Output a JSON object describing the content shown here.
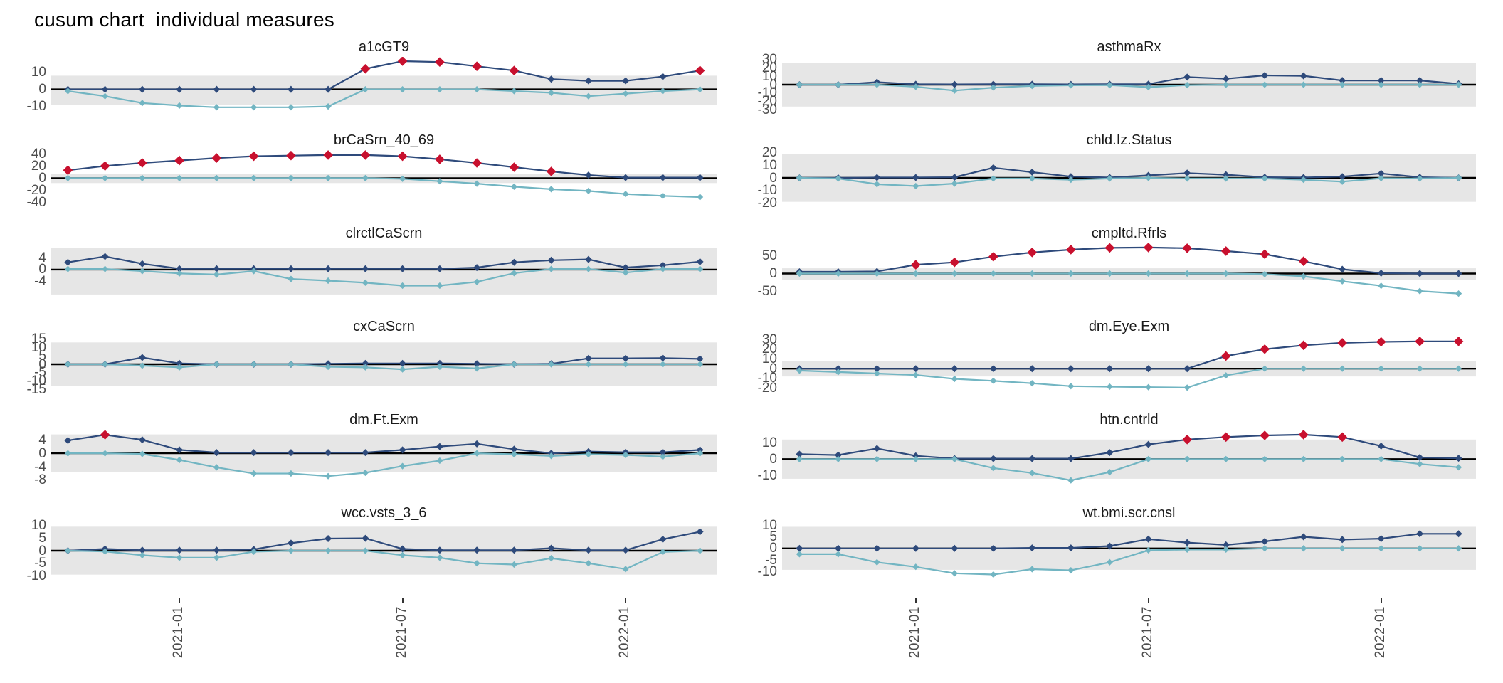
{
  "title": "cusum chart  individual measures",
  "colors": {
    "upper_series": "#2E4A7B",
    "lower_series": "#72B5C2",
    "flag": "#C8102E",
    "band": "#E6E6E6",
    "center_line": "#000000",
    "axis_text": "#4D4D4D",
    "facet_title_text": "#1A1A1A"
  },
  "chart_data": {
    "type": "line",
    "title": "cusum chart  individual measures",
    "grid": "off",
    "legend": "none",
    "n_points": 18,
    "x_axis": {
      "tick_labels": [
        "2021-01",
        "2021-07",
        "2022-01"
      ],
      "tick_point_index": [
        4,
        10,
        16
      ],
      "label_rotation_deg": -90
    },
    "marker": "diamond",
    "center_line_y": 0,
    "panels": [
      {
        "title": "a1cGT9",
        "yticks": [
          10,
          0,
          -10
        ],
        "ylim": [
          -13.5,
          19
        ],
        "band": [
          -9,
          8
        ],
        "upper": [
          0,
          0,
          0,
          0,
          0,
          0,
          0,
          0,
          12,
          16.5,
          16,
          13.5,
          11,
          6,
          5,
          5,
          7.5,
          11
        ],
        "lower": [
          -1,
          -4,
          -8,
          -9.5,
          -10.5,
          -10.5,
          -10.5,
          -10,
          0,
          0,
          0,
          0,
          -1,
          -2,
          -4,
          -2.5,
          -1,
          0
        ],
        "flagged": [
          9,
          10,
          11,
          12,
          13,
          18
        ]
      },
      {
        "title": "asthmaRx",
        "yticks": [
          30,
          20,
          10,
          0,
          -10,
          -20,
          -30
        ],
        "ylim": [
          -33,
          33
        ],
        "band": [
          -26,
          26
        ],
        "upper": [
          0,
          0,
          3,
          0.5,
          0.3,
          0.5,
          0.5,
          0.3,
          0.5,
          0.7,
          9,
          7,
          11,
          10.5,
          5,
          5,
          5,
          1
        ],
        "lower": [
          0,
          0,
          0,
          -2.5,
          -7,
          -3.5,
          -1.5,
          -0.8,
          -0.5,
          -3,
          -0.5,
          0,
          0,
          0,
          0,
          0,
          0,
          0
        ],
        "flagged": []
      },
      {
        "title": "brCaSrn_40_69",
        "yticks": [
          40,
          20,
          0,
          -20,
          -40
        ],
        "ylim": [
          -45,
          46
        ],
        "band": [
          -8,
          7
        ],
        "upper": [
          13,
          20,
          25,
          29,
          33,
          36,
          37,
          38,
          38,
          36,
          31,
          25,
          18,
          11,
          5,
          1,
          1,
          1
        ],
        "lower": [
          0,
          0,
          0,
          0,
          0,
          0,
          0,
          0,
          0,
          -1,
          -5,
          -9,
          -14,
          -18,
          -21,
          -26,
          -29,
          -31
        ],
        "flagged": [
          1,
          2,
          3,
          4,
          5,
          6,
          7,
          8,
          9,
          10,
          11,
          12,
          13,
          14
        ]
      },
      {
        "title": "chld.Iz.Status",
        "yticks": [
          20,
          10,
          0,
          -10,
          -20
        ],
        "ylim": [
          -22,
          22
        ],
        "band": [
          -19,
          19
        ],
        "upper": [
          0,
          0,
          0.3,
          0.3,
          0.5,
          8,
          4.5,
          1,
          0.3,
          2,
          3.8,
          2.5,
          0.5,
          0.3,
          1,
          3.5,
          0.5,
          0
        ],
        "lower": [
          0,
          -0.5,
          -5,
          -6.5,
          -4.5,
          -0.5,
          -0.5,
          -1.5,
          -0.5,
          0,
          -0.5,
          -0.5,
          -0.5,
          -1.5,
          -3,
          -0.3,
          -0.5,
          0
        ],
        "flagged": []
      },
      {
        "title": "clrctlCaScrn",
        "yticks": [
          4,
          0,
          -4
        ],
        "ylim": [
          -10,
          9
        ],
        "band": [
          -8.5,
          7.5
        ],
        "upper": [
          2.5,
          4.5,
          2,
          0.3,
          0.3,
          0.3,
          0.3,
          0.3,
          0.3,
          0.3,
          0.3,
          0.7,
          2.5,
          3.2,
          3.5,
          0.7,
          1.5,
          2.7
        ],
        "lower": [
          0.2,
          0.2,
          -0.5,
          -1.3,
          -1.7,
          -0.5,
          -3.2,
          -3.8,
          -4.5,
          -5.5,
          -5.5,
          -4.2,
          -1.2,
          0.2,
          0.2,
          -1,
          0.2,
          0.2
        ],
        "flagged": []
      },
      {
        "title": "cmpltd.Rfrls",
        "yticks": [
          50,
          0,
          -50
        ],
        "ylim": [
          -72,
          86
        ],
        "band": [
          -18,
          15
        ],
        "upper": [
          5,
          5,
          6,
          25,
          32,
          48,
          60,
          68,
          73,
          74,
          72,
          64,
          55,
          35,
          12,
          1,
          0,
          0
        ],
        "lower": [
          0,
          0,
          0,
          0,
          0,
          0,
          0,
          0,
          0,
          0,
          0,
          0,
          -2,
          -8,
          -22,
          -35,
          -50,
          -57
        ],
        "flagged": [
          4,
          5,
          6,
          7,
          8,
          9,
          10,
          11,
          12,
          13,
          14
        ]
      },
      {
        "title": "cxCaScrn",
        "yticks": [
          15,
          10,
          5,
          0,
          -5,
          -10,
          -15
        ],
        "ylim": [
          -16.5,
          16.5
        ],
        "band": [
          -13,
          13
        ],
        "upper": [
          0,
          0,
          4,
          0.5,
          0,
          0,
          0,
          0.3,
          0.5,
          0.5,
          0.5,
          0.3,
          0,
          0.3,
          3.5,
          3.5,
          3.7,
          3.2
        ],
        "lower": [
          0,
          0,
          -0.8,
          -1.8,
          0,
          0,
          0,
          -1.5,
          -1.8,
          -3,
          -1.5,
          -2.5,
          0,
          0,
          0,
          0,
          0,
          0
        ],
        "flagged": []
      },
      {
        "title": "dm.Eye.Exm",
        "yticks": [
          30,
          20,
          10,
          0,
          -10,
          -20
        ],
        "ylim": [
          -24,
          33
        ],
        "band": [
          -8,
          8
        ],
        "upper": [
          0,
          0,
          0,
          0,
          0,
          0,
          0,
          0,
          0,
          0,
          0,
          13,
          20,
          24,
          26.5,
          27.5,
          28,
          28
        ],
        "lower": [
          -2,
          -3.5,
          -5,
          -6.5,
          -10.5,
          -12.5,
          -15,
          -18,
          -18.5,
          -19,
          -19.5,
          -7,
          0,
          0,
          0,
          0,
          0,
          0
        ],
        "flagged": [
          12,
          13,
          14,
          15,
          16,
          17,
          18
        ]
      },
      {
        "title": "dm.Ft.Exm",
        "yticks": [
          4,
          0,
          -4,
          -8
        ],
        "ylim": [
          -9.5,
          7
        ],
        "band": [
          -5.5,
          5.6
        ],
        "upper": [
          3.8,
          5.5,
          4,
          1,
          0.2,
          0.2,
          0.2,
          0.2,
          0.2,
          1,
          2,
          2.8,
          1.2,
          0,
          0.5,
          0.3,
          0.3,
          1
        ],
        "lower": [
          0,
          0,
          -0.2,
          -2,
          -4.2,
          -6,
          -6,
          -6.8,
          -5.8,
          -3.8,
          -2.2,
          0,
          -0.3,
          -0.8,
          -0.3,
          -0.5,
          -1,
          0
        ],
        "flagged": [
          2
        ]
      },
      {
        "title": "htn.cntrld",
        "yticks": [
          10,
          0,
          -10
        ],
        "ylim": [
          -16,
          18
        ],
        "band": [
          -12,
          12
        ],
        "upper": [
          3,
          2.5,
          6.5,
          2,
          0.3,
          0.3,
          0.3,
          0.3,
          4,
          9,
          12,
          13.5,
          14.5,
          15,
          13.5,
          8,
          1,
          0.5
        ],
        "lower": [
          0,
          0,
          0,
          0,
          0,
          -5.5,
          -8.5,
          -13,
          -8,
          0,
          0,
          0,
          0,
          0,
          0,
          0,
          -3,
          -5
        ],
        "flagged": [
          11,
          12,
          13,
          14,
          15
        ]
      },
      {
        "title": "wcc.vsts_3_6",
        "yticks": [
          10,
          5,
          0,
          -5,
          -10
        ],
        "ylim": [
          -11,
          11
        ],
        "band": [
          -9.5,
          9.5
        ],
        "upper": [
          0,
          0.7,
          0.2,
          0.2,
          0.2,
          0.5,
          3,
          4.8,
          4.9,
          0.7,
          0.2,
          0.2,
          0.2,
          1,
          0.2,
          0.2,
          4.5,
          7.5
        ],
        "lower": [
          0,
          -0.3,
          -1.8,
          -2.8,
          -2.8,
          -0.4,
          0,
          0,
          0,
          -1.8,
          -2.8,
          -5,
          -5.5,
          -3,
          -5,
          -7.3,
          -0.5,
          0
        ],
        "flagged": []
      },
      {
        "title": "wt.bmi.scr.cnsl",
        "yticks": [
          10,
          5,
          0,
          -5,
          -10
        ],
        "ylim": [
          -13,
          11
        ],
        "band": [
          -9.3,
          9.3
        ],
        "upper": [
          0,
          0,
          0,
          0,
          0,
          0,
          0.2,
          0.2,
          1,
          4,
          2.5,
          1.5,
          3,
          5,
          3.8,
          4.2,
          6.3,
          6.3
        ],
        "lower": [
          -2.5,
          -2.5,
          -6,
          -8,
          -10.8,
          -11.3,
          -9,
          -9.5,
          -6,
          -0.8,
          -0.5,
          -0.5,
          0,
          0,
          0,
          0,
          0,
          0
        ],
        "flagged": []
      }
    ]
  }
}
